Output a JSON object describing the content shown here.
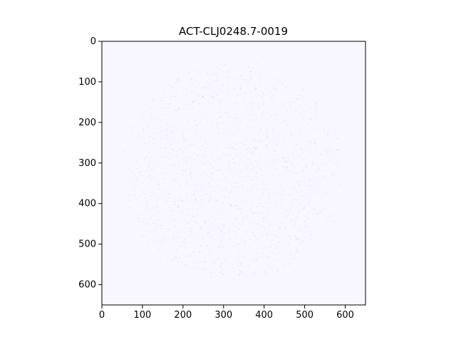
{
  "figure": {
    "title": "ACT-CLJ0248.7-0019",
    "background_color": "#ffffff",
    "image_background_color": "#f8f7ff",
    "image_description_shape": "circular-speckled-field",
    "x_ticks": [
      "0",
      "100",
      "200",
      "300",
      "400",
      "500",
      "600"
    ],
    "y_ticks": [
      "0",
      "100",
      "200",
      "300",
      "400",
      "500",
      "600"
    ]
  },
  "chart_data": {
    "type": "heatmap",
    "title": "ACT-CLJ0248.7-0019",
    "xlabel": "",
    "ylabel": "",
    "xlim": [
      0,
      650
    ],
    "ylim": [
      650,
      0
    ],
    "x_ticks": [
      0,
      100,
      200,
      300,
      400,
      500,
      600
    ],
    "y_ticks": [
      0,
      100,
      200,
      300,
      400,
      500,
      600
    ],
    "grid": false,
    "legend": "none",
    "colormap": "blue-white-red",
    "noise_region": {
      "center": [
        320,
        320
      ],
      "radius": 270
    }
  }
}
